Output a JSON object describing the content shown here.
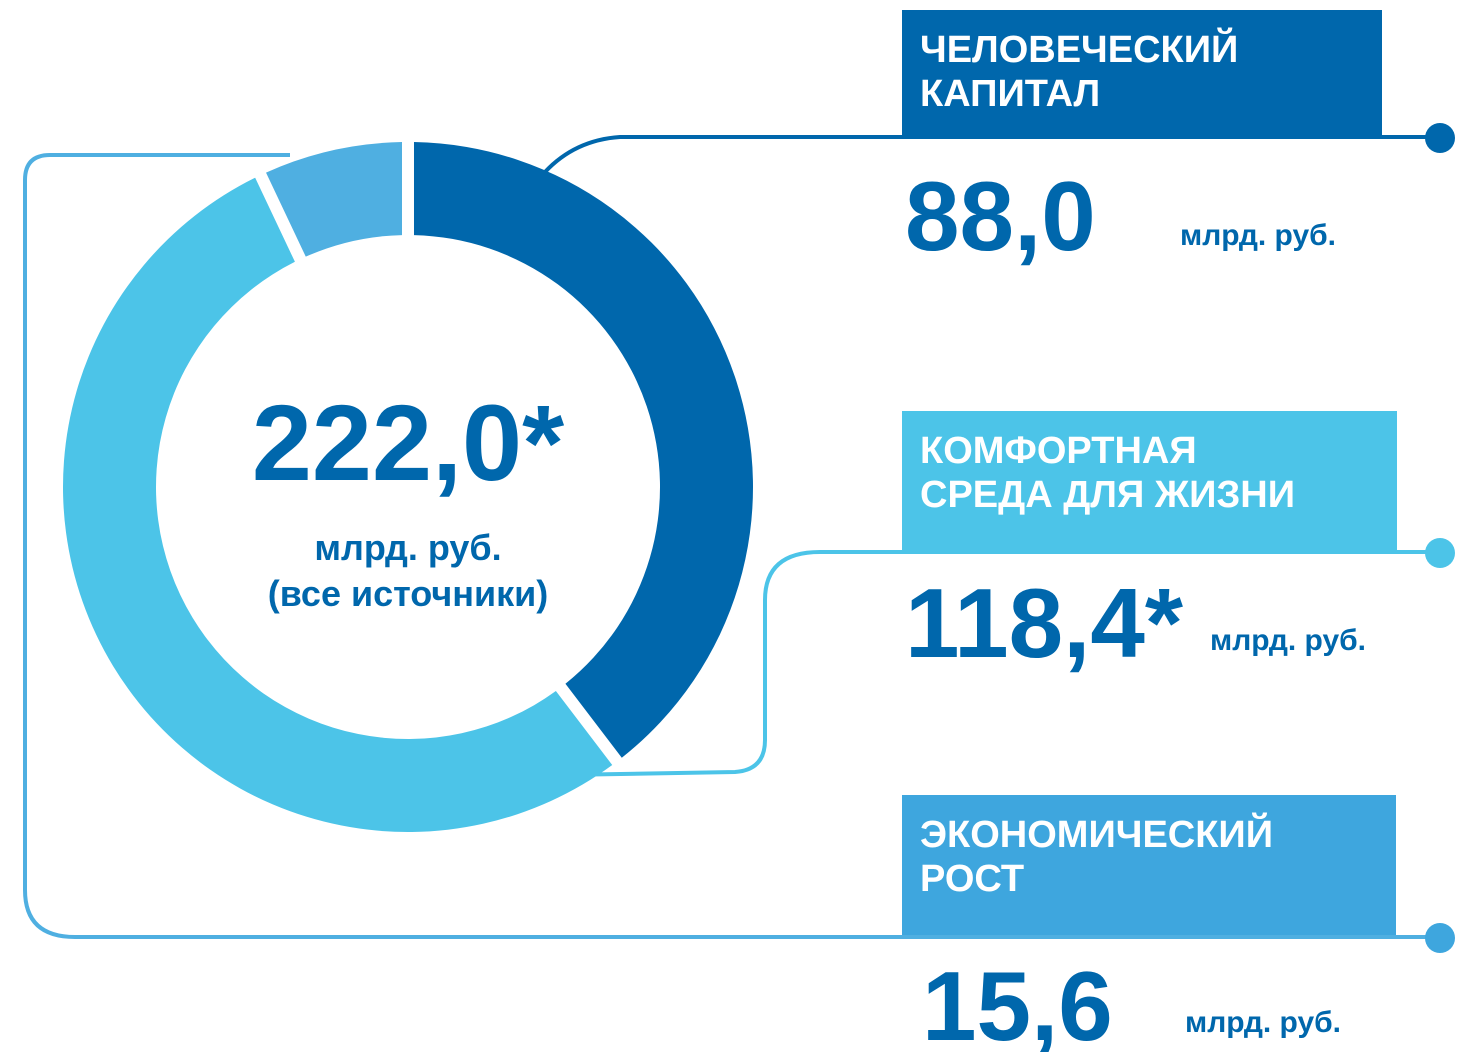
{
  "chart_data": {
    "type": "pie",
    "donut": true,
    "total_label": "222,0*",
    "total_unit": "млрд. руб.",
    "total_caption": "(все источники)",
    "unit": "млрд. руб.",
    "categories": [
      "ЧЕЛОВЕЧЕСКИЙ\nКАПИТАЛ",
      "КОМФОРТНАЯ\nСРЕДА ДЛЯ ЖИЗНИ",
      "ЭКОНОМИЧЕСКИЙ\nРОСТ"
    ],
    "values": [
      88.0,
      118.4,
      15.6
    ],
    "value_labels": [
      "88,0",
      "118,4*",
      "15,6"
    ],
    "colors": [
      "#0067ac",
      "#4cc4e8",
      "#4fafe1"
    ],
    "box_colors": [
      "#0067ac",
      "#4cc4e8",
      "#3ea6de"
    ]
  }
}
